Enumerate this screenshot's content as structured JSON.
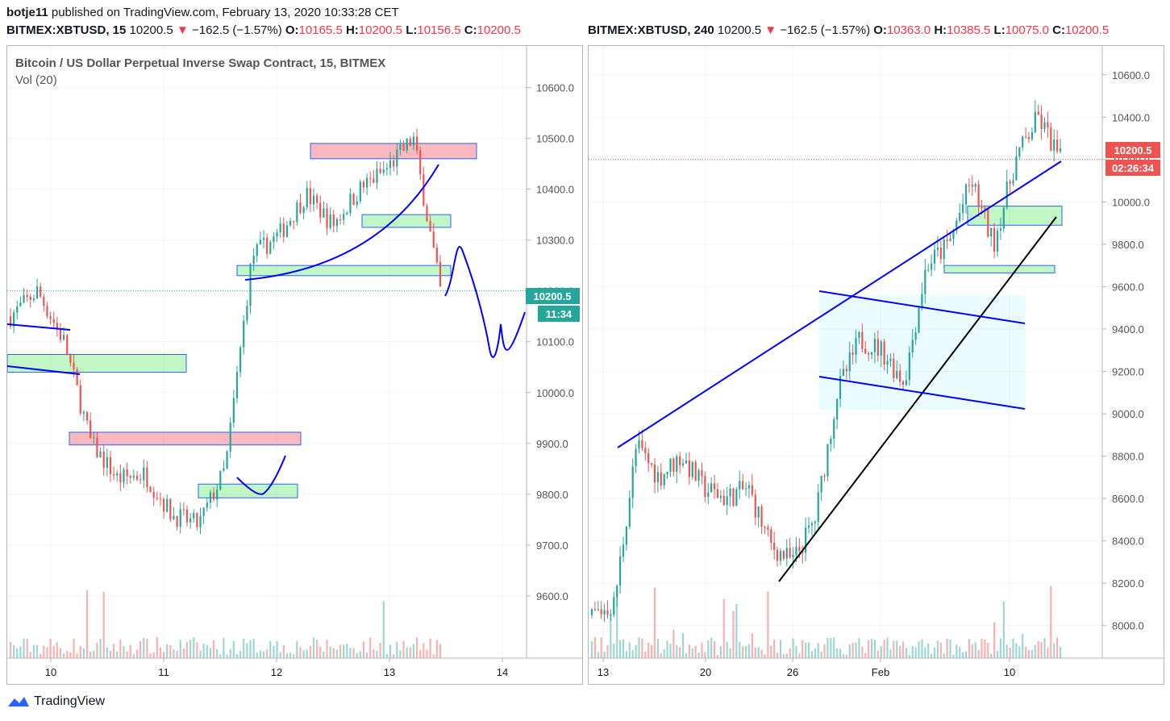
{
  "publisher": {
    "user": "botje11",
    "text": "published on TradingView.com, February 13, 2020 10:33:28 CET"
  },
  "colors": {
    "up": "#26a69a",
    "down": "#ef5350",
    "line": "#0000ff",
    "black": "#000000"
  },
  "left": {
    "header": {
      "symbol": "BITMEX:XBTUSD, 15",
      "last": "10200.5",
      "arrow": "▼",
      "change": "−162.5 (−1.57%)",
      "o_label": "O:",
      "o": "10165.5",
      "h_label": "H:",
      "h": "10200.5",
      "l_label": "L:",
      "l": "10156.5",
      "c_label": "C:",
      "c": "10200.5"
    },
    "title": "Bitcoin / US Dollar Perpetual Inverse Swap Contract, 15, BITMEX",
    "vol_label": "Vol (20)",
    "price_badge": "10200.5",
    "timer_badge": "11:34"
  },
  "right": {
    "header": {
      "symbol": "BITMEX:XBTUSD, 240",
      "last": "10200.5",
      "arrow": "▼",
      "change": "−162.5 (−1.57%)",
      "o_label": "O:",
      "o": "10363.0",
      "h_label": "H:",
      "h": "10385.5",
      "l_label": "L:",
      "l": "10075.0",
      "c_label": "C:",
      "c": "10200.5"
    },
    "price_badge": "10200.5",
    "timer_badge": "02:26:34"
  },
  "footer": {
    "brand": "TradingView"
  },
  "chart_data": [
    {
      "type": "candlestick",
      "interval": "15",
      "yticks": [
        10600.0,
        10500.0,
        10400.0,
        10300.0,
        10200.0,
        10100.0,
        10000.0,
        9900.0,
        9800.0,
        9700.0,
        9600.0
      ],
      "ylim": [
        9500,
        10650
      ],
      "xticks": [
        "10",
        "11",
        "12",
        "13",
        "14"
      ],
      "last_price": 10200.5,
      "series": [
        {
          "name": "",
          "x": [
            "09-Feb",
            "10-Feb 00:00",
            "10-Feb 06:00",
            "10-Feb 12:00",
            "10-Feb 18:00",
            "11-Feb 00:00",
            "11-Feb 06:00",
            "11-Feb 12:00",
            "11-Feb 16:00",
            "11-Feb 18:00",
            "12-Feb 00:00",
            "12-Feb 06:00",
            "12-Feb 12:00",
            "12-Feb 18:00",
            "13-Feb 00:00",
            "13-Feb 06:00",
            "13-Feb 10:00"
          ],
          "values": [
            10150,
            10200,
            10100,
            9900,
            9830,
            9840,
            9760,
            9740,
            9850,
            10270,
            10310,
            10390,
            10330,
            10400,
            10440,
            10500,
            10200
          ]
        }
      ],
      "zones": [
        {
          "color": "red",
          "ylim": [
            10460,
            10490
          ]
        },
        {
          "color": "green",
          "ylim": [
            10325,
            10350
          ]
        },
        {
          "color": "green",
          "ylim": [
            10230,
            10250
          ]
        },
        {
          "color": "green",
          "ylim": [
            10040,
            10075
          ]
        },
        {
          "color": "red",
          "ylim": [
            9897,
            9922
          ]
        },
        {
          "color": "green",
          "ylim": [
            9793,
            9820
          ]
        }
      ]
    },
    {
      "type": "candlestick",
      "interval": "240",
      "yticks": [
        10600.0,
        10400.0,
        10200.0,
        10000.0,
        9800.0,
        9600.0,
        9400.0,
        9200.0,
        9000.0,
        8800.0,
        8600.0,
        8400.0,
        8200.0,
        8000.0
      ],
      "ylim": [
        7900,
        10660
      ],
      "xticks": [
        "13",
        "20",
        "26",
        "Feb",
        "10"
      ],
      "last_price": 10200.5,
      "series": [
        {
          "name": "",
          "x": [
            "Jan 11",
            "Jan 13",
            "Jan 15",
            "Jan 17",
            "Jan 19",
            "Jan 20",
            "Jan 22",
            "Jan 24",
            "Jan 25",
            "Jan 27",
            "Jan 28",
            "Jan 30",
            "Feb 1",
            "Feb 3",
            "Feb 4",
            "Feb 6",
            "Feb 8",
            "Feb 9",
            "Feb 10",
            "Feb 11",
            "Feb 12",
            "Feb 13"
          ],
          "values": [
            8050,
            8100,
            8850,
            8700,
            8800,
            8650,
            8600,
            8650,
            8380,
            8300,
            8500,
            9100,
            9350,
            9300,
            9150,
            9700,
            9800,
            10100,
            9800,
            10200,
            10400,
            10200
          ]
        }
      ],
      "zones": [
        {
          "color": "green",
          "ylim": [
            9890,
            9980
          ]
        },
        {
          "color": "green",
          "ylim": [
            9665,
            9700
          ]
        },
        {
          "color": "cyan",
          "ylim": [
            9020,
            9560
          ]
        }
      ]
    }
  ]
}
